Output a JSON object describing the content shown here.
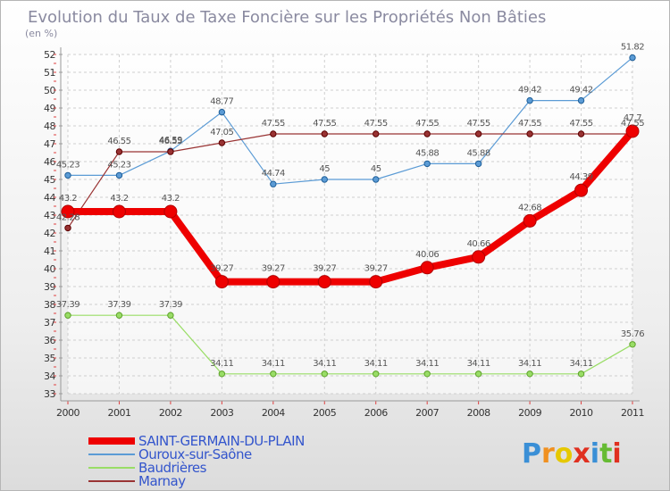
{
  "chart_data": {
    "type": "line",
    "title": "Evolution du Taux de Taxe Foncière sur les Propriétés Non Bâties",
    "subtitle": "(en %)",
    "x": [
      "2000",
      "2001",
      "2002",
      "2003",
      "2004",
      "2005",
      "2006",
      "2007",
      "2008",
      "2009",
      "2010",
      "2011"
    ],
    "yticks": [
      "33",
      "34",
      "35",
      "36",
      "37",
      "38",
      "39",
      "40",
      "41",
      "42",
      "43",
      "44",
      "45",
      "46",
      "47",
      "48",
      "49",
      "50",
      "51",
      "52"
    ],
    "ylim": [
      33,
      52
    ],
    "grid": true,
    "legend_position": "bottom-left",
    "series": [
      {
        "name": "SAINT-GERMAIN-DU-PLAIN",
        "color": "#ee0000",
        "width": 8,
        "marker": 7,
        "values": [
          43.2,
          43.2,
          43.2,
          39.27,
          39.27,
          39.27,
          39.27,
          40.06,
          40.66,
          42.68,
          44.39,
          47.7
        ],
        "labels": [
          "43.2",
          "43.2",
          "43.2",
          "39.27",
          "39.27",
          "39.27",
          "39.27",
          "40.06",
          "40.66",
          "42.68",
          "44.39",
          "47.7"
        ]
      },
      {
        "name": "Ouroux-sur-Saône",
        "color": "#5b9bd5",
        "width": 1.2,
        "marker": 3.2,
        "values": [
          45.23,
          45.23,
          46.59,
          48.77,
          44.74,
          45,
          45,
          45.88,
          45.88,
          49.42,
          49.42,
          51.82
        ],
        "labels": [
          "45.23",
          "45.23",
          "46.59",
          "48.77",
          "44.74",
          "45",
          "45",
          "45.88",
          "45.88",
          "49.42",
          "49.42",
          "51.82"
        ]
      },
      {
        "name": "Baudrières",
        "color": "#99dd66",
        "width": 1.2,
        "marker": 3.2,
        "values": [
          37.39,
          37.39,
          37.39,
          34.11,
          34.11,
          34.11,
          34.11,
          34.11,
          34.11,
          34.11,
          34.11,
          35.76
        ],
        "labels": [
          "37.39",
          "37.39",
          "37.39",
          "34.11",
          "34.11",
          "34.11",
          "34.11",
          "34.11",
          "34.11",
          "34.11",
          "34.11",
          "35.76"
        ]
      },
      {
        "name": "Marnay",
        "color": "#993333",
        "width": 1.2,
        "marker": 3.2,
        "values": [
          42.28,
          46.55,
          46.55,
          47.05,
          47.55,
          47.55,
          47.55,
          47.55,
          47.55,
          47.55,
          47.55,
          47.55
        ],
        "labels": [
          "42.28",
          "46.55",
          "46.55",
          "47.05",
          "47.55",
          "47.55",
          "47.55",
          "47.55",
          "47.55",
          "47.55",
          "47.55",
          "47.55"
        ]
      }
    ]
  },
  "logo": {
    "letters": [
      "P",
      "r",
      "o",
      "x",
      "i",
      "t",
      "i"
    ],
    "colors": [
      "#3a8fd6",
      "#f09020",
      "#e6c800",
      "#e03020",
      "#3a8fd6",
      "#66bb33",
      "#e03020"
    ]
  }
}
